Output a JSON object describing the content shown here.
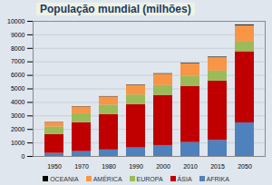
{
  "chart_data": {
    "type": "bar",
    "stacked": true,
    "title": "População mundial (milhões)",
    "categories": [
      "1950",
      "1970",
      "1980",
      "1990",
      "2000",
      "2010",
      "2015",
      "2050"
    ],
    "series": [
      {
        "name": "AFRIKA",
        "color": "#4f81bd",
        "values": [
          230,
          360,
          480,
          630,
          810,
          1030,
          1190,
          2480
        ]
      },
      {
        "name": "ÁSIA",
        "color": "#c00000",
        "values": [
          1400,
          2140,
          2630,
          3200,
          3710,
          4160,
          4390,
          5270
        ]
      },
      {
        "name": "EUROPA",
        "color": "#9bbb59",
        "values": [
          550,
          660,
          690,
          720,
          730,
          740,
          740,
          710
        ]
      },
      {
        "name": "AMÉRICA",
        "color": "#f79646",
        "values": [
          340,
          510,
          610,
          720,
          840,
          940,
          990,
          1220
        ]
      },
      {
        "name": "OCEANIA",
        "color": "#000000",
        "values": [
          13,
          20,
          23,
          27,
          31,
          37,
          40,
          57
        ]
      }
    ],
    "ylim": [
      0,
      10000
    ],
    "yticks": [
      0,
      1000,
      2000,
      3000,
      4000,
      5000,
      6000,
      7000,
      8000,
      9000,
      10000
    ],
    "grid": true,
    "legend": "bottom"
  }
}
